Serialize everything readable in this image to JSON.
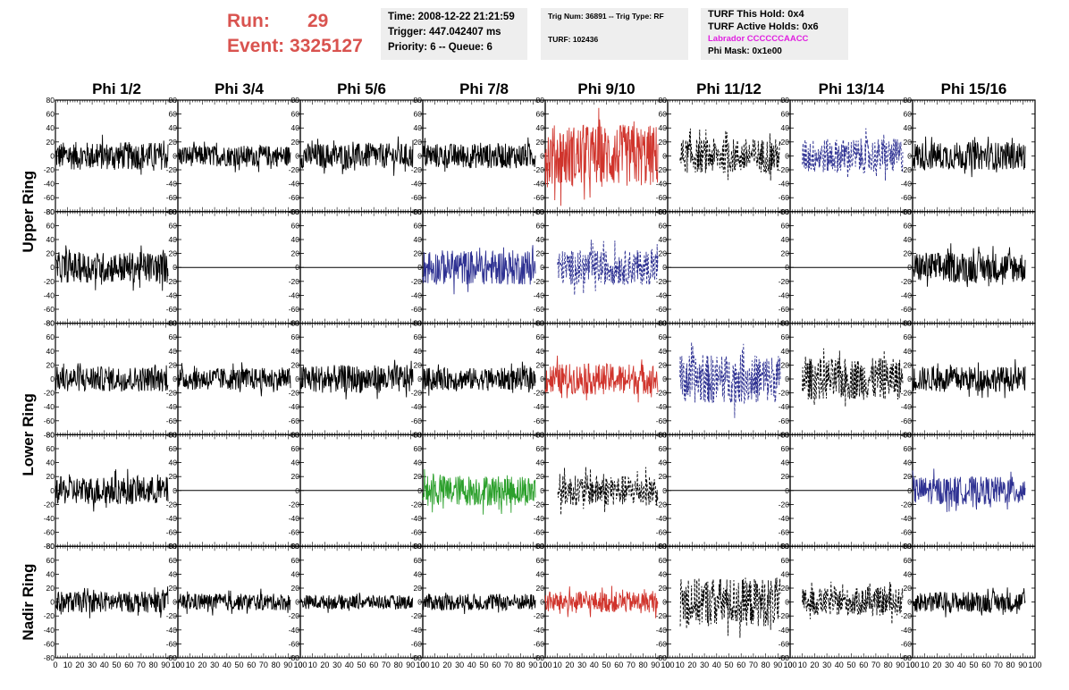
{
  "header": {
    "run_label": "Run:",
    "run_value": "29",
    "event_label": "Event:",
    "event_value": "3325127",
    "time": "Time: 2008-12-22 21:21:59",
    "trigger": "Trigger: 447.042407 ms",
    "priority": "Priority: 6 -- Queue: 6",
    "trig_num": "Trig Num: 36891 -- Trig Type: RF",
    "turf": "TURF: 102436",
    "turf_hold": "TURF This Hold: 0x4",
    "turf_active": "TURF Active Holds: 0x6",
    "labrador": "Labrador CCCCCCAACC",
    "phi_mask": "Phi Mask: 0x1e00"
  },
  "colors": {
    "black": "#000000",
    "red": "#d0342c",
    "blue": "#2e3192",
    "green": "#2ca02c",
    "run_text": "#d9534f",
    "magenta": "#e020e0",
    "box_bg": "#eeeeee"
  },
  "chart_data": {
    "type": "line",
    "columns": [
      "Phi 1/2",
      "Phi 3/4",
      "Phi 5/6",
      "Phi 7/8",
      "Phi 9/10",
      "Phi 11/12",
      "Phi 13/14",
      "Phi 15/16"
    ],
    "ring_labels": [
      "Upper Ring",
      "Lower Ring",
      "Nadir Ring"
    ],
    "ylim": [
      -80,
      80
    ],
    "yticks": [
      "80",
      "60",
      "40",
      "20",
      "0",
      "-20",
      "-40",
      "-60",
      "-80"
    ],
    "xlim": [
      0,
      100
    ],
    "xticks": [
      "0",
      "10",
      "20",
      "30",
      "40",
      "50",
      "60",
      "70",
      "80",
      "90",
      "100"
    ],
    "rows": [
      [
        {
          "color": "black",
          "style": "solid",
          "amp": 20
        },
        {
          "color": "black",
          "style": "solid",
          "amp": 15
        },
        {
          "color": "black",
          "style": "solid",
          "amp": 18
        },
        {
          "color": "black",
          "style": "solid",
          "amp": 18
        },
        {
          "color": "red",
          "style": "solid",
          "amp": 45
        },
        {
          "color": "black",
          "style": "dashed",
          "amp": 25
        },
        {
          "color": "blue",
          "style": "dashed",
          "amp": 25
        },
        {
          "color": "black",
          "style": "solid",
          "amp": 20
        }
      ],
      [
        {
          "color": "black",
          "style": "solid",
          "amp": 22
        },
        {
          "color": "black",
          "style": "flat",
          "amp": 0
        },
        {
          "color": "black",
          "style": "flat",
          "amp": 0
        },
        {
          "color": "blue",
          "style": "solid",
          "amp": 25
        },
        {
          "color": "blue",
          "style": "dashed",
          "amp": 25
        },
        {
          "color": "black",
          "style": "flat",
          "amp": 0
        },
        {
          "color": "black",
          "style": "flat",
          "amp": 0
        },
        {
          "color": "black",
          "style": "solid",
          "amp": 22
        }
      ],
      [
        {
          "color": "black",
          "style": "solid",
          "amp": 18
        },
        {
          "color": "black",
          "style": "solid",
          "amp": 16
        },
        {
          "color": "black",
          "style": "solid",
          "amp": 20
        },
        {
          "color": "black",
          "style": "solid",
          "amp": 16
        },
        {
          "color": "red",
          "style": "solid",
          "amp": 22
        },
        {
          "color": "blue",
          "style": "dashed",
          "amp": 35
        },
        {
          "color": "black",
          "style": "dashed",
          "amp": 30
        },
        {
          "color": "black",
          "style": "solid",
          "amp": 18
        }
      ],
      [
        {
          "color": "black",
          "style": "solid",
          "amp": 20
        },
        {
          "color": "black",
          "style": "flat",
          "amp": 0
        },
        {
          "color": "black",
          "style": "flat",
          "amp": 0
        },
        {
          "color": "green",
          "style": "solid",
          "amp": 22
        },
        {
          "color": "black",
          "style": "dashed",
          "amp": 22
        },
        {
          "color": "black",
          "style": "flat",
          "amp": 0
        },
        {
          "color": "black",
          "style": "flat",
          "amp": 0
        },
        {
          "color": "blue",
          "style": "solid",
          "amp": 20
        }
      ],
      [
        {
          "color": "black",
          "style": "solid",
          "amp": 15
        },
        {
          "color": "black",
          "style": "solid",
          "amp": 12
        },
        {
          "color": "black",
          "style": "solid",
          "amp": 10
        },
        {
          "color": "black",
          "style": "solid",
          "amp": 12
        },
        {
          "color": "red",
          "style": "solid",
          "amp": 15
        },
        {
          "color": "black",
          "style": "dashed",
          "amp": 35
        },
        {
          "color": "black",
          "style": "dashed",
          "amp": 20
        },
        {
          "color": "black",
          "style": "solid",
          "amp": 15
        }
      ]
    ]
  }
}
